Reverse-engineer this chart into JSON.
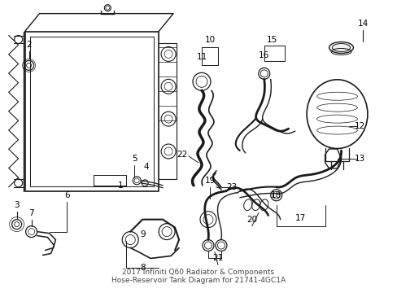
{
  "title": "2017 Infiniti Q60 Radiator & Components\nHose-Reservoir Tank Diagram for 21741-4GC1A",
  "bg_color": "#ffffff",
  "line_color": "#1a1a1a",
  "label_color": "#000000",
  "label_fontsize": 7.5,
  "title_fontsize": 6.5
}
